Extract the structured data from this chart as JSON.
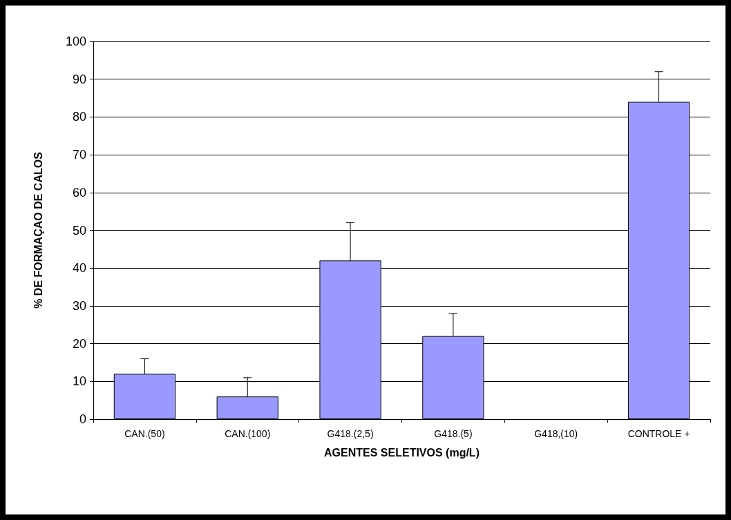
{
  "chart_data": {
    "type": "bar",
    "xlabel": "AGENTES SELETIVOS (mg/L)",
    "ylabel": "% DE FORMAÇAO DE CALOS",
    "categories": [
      "CAN.(50)",
      "CAN.(100)",
      "G418.(2,5)",
      "G418.(5)",
      "G418,(10)",
      "CONTROLE +"
    ],
    "values": [
      12,
      6,
      42,
      22,
      0,
      84
    ],
    "errors": [
      [
        12,
        16
      ],
      [
        6,
        11
      ],
      [
        42,
        52
      ],
      [
        22,
        28
      ],
      null,
      [
        84,
        92
      ]
    ],
    "color": "#9999ff",
    "ylim": [
      0,
      100
    ],
    "yticks": [
      0,
      10,
      20,
      30,
      40,
      50,
      60,
      70,
      80,
      90,
      100
    ],
    "grid": "y"
  }
}
